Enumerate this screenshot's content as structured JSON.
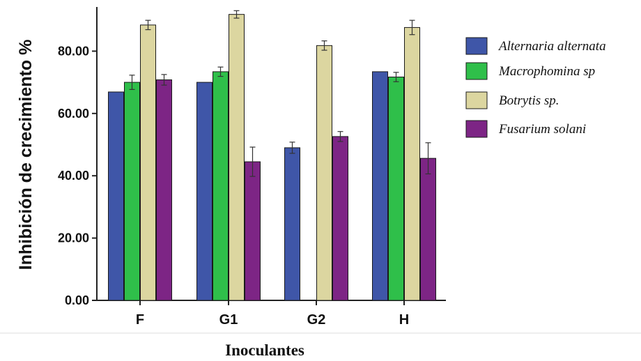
{
  "chart_data": {
    "type": "bar",
    "title": "",
    "xlabel": "Inoculantes",
    "ylabel": "Inhibición de crecimiento %",
    "categories": [
      "F",
      "G1",
      "G2",
      "H"
    ],
    "ylim": [
      0,
      90
    ],
    "yticks": [
      0,
      20,
      40,
      60,
      80
    ],
    "ytick_labels": [
      "0.00",
      "20.00",
      "40.00",
      "60.00",
      "80.00"
    ],
    "grid": false,
    "legend_position": "right",
    "series": [
      {
        "name": "Alternaria alternata",
        "color": "#3f56a8",
        "values": [
          66.9,
          70.0,
          49.0,
          73.4
        ],
        "errors": [
          0,
          0,
          1.8,
          0
        ]
      },
      {
        "name": "Macrophomina sp",
        "color": "#2fbf4a",
        "values": [
          70.0,
          73.4,
          0,
          71.7
        ],
        "errors": [
          2.3,
          1.5,
          0,
          1.5
        ]
      },
      {
        "name": "Botrytis sp.",
        "color": "#dcd6a0",
        "values": [
          88.4,
          91.8,
          81.8,
          87.6
        ],
        "errors": [
          1.5,
          1.2,
          1.5,
          2.3
        ]
      },
      {
        "name": "Fusarium solani",
        "color": "#7d2585",
        "values": [
          70.8,
          44.5,
          52.6,
          45.6
        ],
        "errors": [
          1.7,
          4.7,
          1.6,
          5.0
        ]
      }
    ]
  }
}
